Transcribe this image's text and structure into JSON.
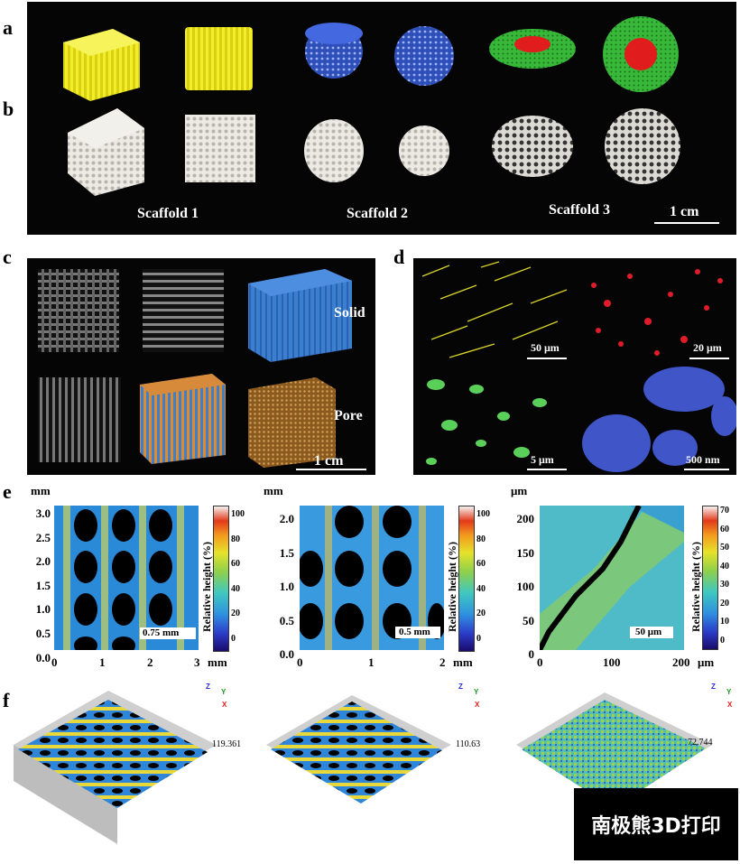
{
  "panel_labels": {
    "a": "a",
    "b": "b",
    "c": "c",
    "d": "d",
    "e": "e",
    "f": "f"
  },
  "panel_ab": {
    "scaffold_labels": [
      "Scaffold 1",
      "Scaffold 2",
      "Scaffold 3"
    ],
    "scale_bar": "1 cm",
    "colors": {
      "yellow": "#f2ea1a",
      "blue": "#3d5fd6",
      "green": "#3cc13c",
      "red": "#e01c1c",
      "white": "#e8e6e1"
    }
  },
  "panel_c": {
    "solid_label": "Solid",
    "pore_label": "Pore",
    "scale_bar": "1 cm"
  },
  "panel_d": {
    "scale_bars": [
      "50 μm",
      "20 μm",
      "5 μm",
      "500 nm"
    ]
  },
  "panel_e": {
    "plots": [
      {
        "unit_top": "mm",
        "y_ticks": [
          "3.0",
          "2.5",
          "2.0",
          "1.5",
          "1.0",
          "0.5",
          "0.0"
        ],
        "x_ticks": [
          "0",
          "1",
          "2",
          "3"
        ],
        "x_unit": "mm",
        "scale": "0.75 mm",
        "cb_ticks": [
          "100",
          "80",
          "60",
          "40",
          "20",
          "0"
        ],
        "cb_title": "Relative height (%)"
      },
      {
        "unit_top": "mm",
        "y_ticks": [
          "2.0",
          "1.5",
          "1.0",
          "0.5",
          "0.0"
        ],
        "x_ticks": [
          "0",
          "1",
          "2"
        ],
        "x_unit": "mm",
        "scale": "0.5 mm",
        "cb_ticks": [
          "100",
          "80",
          "60",
          "40",
          "20",
          "0"
        ],
        "cb_title": "Relative height (%)"
      },
      {
        "unit_top": "μm",
        "y_ticks": [
          "200",
          "150",
          "100",
          "50",
          "0"
        ],
        "x_ticks": [
          "0",
          "100",
          "200"
        ],
        "x_unit": "μm",
        "scale": "50 μm",
        "cb_ticks": [
          "70",
          "60",
          "50",
          "40",
          "30",
          "20",
          "10",
          "0"
        ],
        "cb_title": "Relative height (%)"
      }
    ]
  },
  "panel_f": {
    "max_values": [
      "119.361",
      "110.63",
      "72.744"
    ],
    "axis_letters": [
      "Z",
      "Y",
      "X"
    ]
  },
  "watermark": "南极熊3D打印"
}
